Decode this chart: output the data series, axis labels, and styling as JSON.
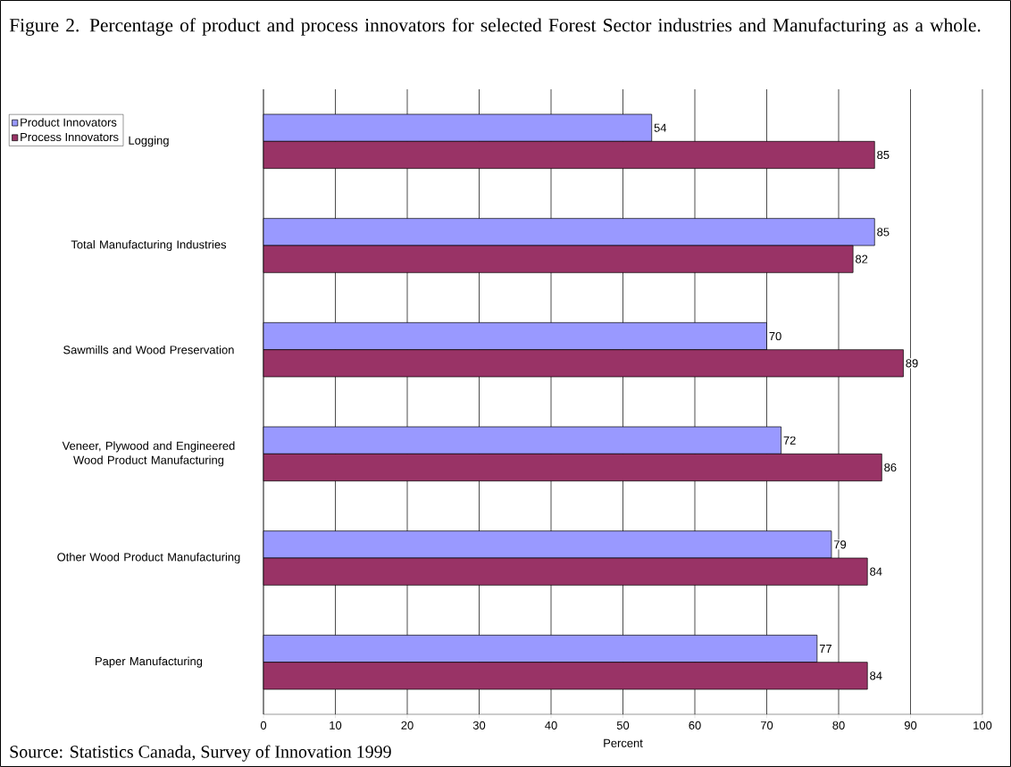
{
  "chart_data": {
    "type": "bar",
    "orientation": "horizontal",
    "title": "Figure 2.  Percentage of product and process innovators for selected Forest Sector industries and Manufacturing as a whole.",
    "xlabel": "Percent",
    "categories": [
      "Logging",
      "Total Manufacturing Industries",
      "Sawmills and Wood Preservation",
      "Veneer, Plywood and Engineered Wood Product Manufacturing",
      "Other Wood Product Manufacturing",
      "Paper Manufacturing"
    ],
    "series": [
      {
        "name": "Product Innovators",
        "color": "#9999ff",
        "values": [
          54,
          85,
          70,
          72,
          79,
          77
        ]
      },
      {
        "name": "Process Innovators",
        "color": "#993366",
        "values": [
          85,
          82,
          89,
          86,
          84,
          84
        ]
      }
    ],
    "xlim": [
      0,
      100
    ],
    "xticks": [
      0,
      10,
      20,
      30,
      40,
      50,
      60,
      70,
      80,
      90,
      100
    ],
    "grid": "x",
    "legend": "top left",
    "data_labels": true,
    "annotations": [
      "Source: Statistics Canada, Survey of Innovation 1999"
    ]
  }
}
